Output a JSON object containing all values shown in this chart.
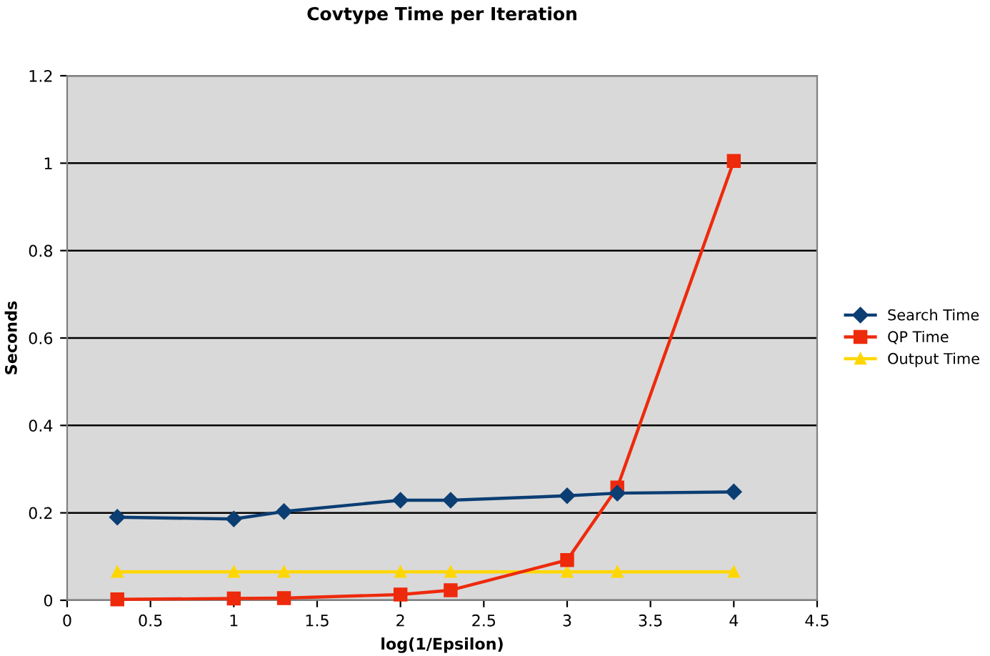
{
  "chart_data": {
    "type": "line",
    "title": "Covtype Time per Iteration",
    "xlabel": "log(1/Epsilon)",
    "ylabel": "Seconds",
    "x": [
      0.301,
      1,
      1.301,
      2,
      2.301,
      3,
      3.301,
      4
    ],
    "series": [
      {
        "name": "Search Time",
        "color": "#0b3e73",
        "marker": "diamond",
        "values": [
          0.19,
          0.186,
          0.203,
          0.229,
          0.229,
          0.239,
          0.245,
          0.248
        ]
      },
      {
        "name": "QP Time",
        "color": "#ee2a0c",
        "marker": "square",
        "values": [
          0.002,
          0.004,
          0.005,
          0.013,
          0.023,
          0.092,
          0.258,
          1.005
        ]
      },
      {
        "name": "Output Time",
        "color": "#ffd700",
        "marker": "triangle",
        "values": [
          0.065,
          0.065,
          0.065,
          0.065,
          0.065,
          0.065,
          0.065,
          0.065
        ]
      }
    ],
    "xlim": [
      0,
      4.5
    ],
    "xticks": [
      0,
      0.5,
      1,
      1.5,
      2,
      2.5,
      3,
      3.5,
      4,
      4.5
    ],
    "ylim": [
      0,
      1.2
    ],
    "yticks": [
      0,
      0.2,
      0.4,
      0.6,
      0.8,
      1,
      1.2
    ],
    "grid": "y",
    "legend": "right"
  }
}
